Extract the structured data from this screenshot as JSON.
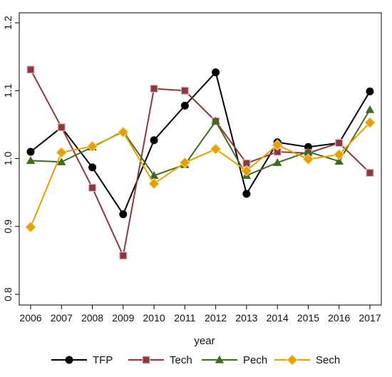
{
  "chart_data": {
    "type": "line",
    "x": [
      "2006",
      "2007",
      "2008",
      "2009",
      "2010",
      "2011",
      "2012",
      "2013",
      "2014",
      "2015",
      "2016",
      "2017"
    ],
    "xlabel": "year",
    "ylabel": "",
    "ylim": [
      0.8,
      1.2
    ],
    "yticks": [
      "0.8",
      "0.9",
      "1.0",
      "1.1",
      "1.2"
    ],
    "grid": false,
    "legend_position": "bottom",
    "series": [
      {
        "name": "TFP",
        "color": "#000000",
        "marker": "circle",
        "values": [
          1.01,
          1.046,
          0.987,
          0.918,
          1.027,
          1.078,
          1.127,
          0.948,
          1.024,
          1.017,
          1.023,
          1.099
        ]
      },
      {
        "name": "Tech",
        "color": "#8b3a3a",
        "marker": "square",
        "values": [
          1.131,
          1.046,
          0.957,
          0.857,
          1.103,
          1.1,
          1.055,
          0.993,
          1.01,
          1.008,
          1.023,
          0.979
        ]
      },
      {
        "name": "Pech",
        "color": "#3f6b1f",
        "marker": "triangle",
        "values": [
          0.997,
          0.995,
          1.017,
          1.04,
          0.975,
          0.991,
          1.055,
          0.975,
          0.994,
          1.01,
          0.996,
          1.072
        ]
      },
      {
        "name": "Sech",
        "color": "#e6a100",
        "marker": "diamond",
        "values": [
          0.899,
          1.009,
          1.018,
          1.039,
          0.963,
          0.994,
          1.014,
          0.982,
          1.02,
          0.999,
          1.006,
          1.053
        ]
      }
    ]
  }
}
